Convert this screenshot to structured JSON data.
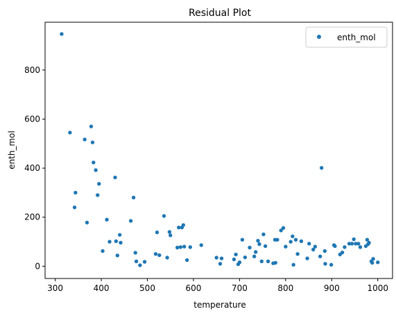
{
  "chart_data": {
    "type": "scatter",
    "title": "Residual Plot",
    "xlabel": "temperature",
    "ylabel": "enth_mol",
    "xlim": [
      278,
      1032
    ],
    "ylim": [
      -50,
      995
    ],
    "xticks": [
      300,
      400,
      500,
      600,
      700,
      800,
      900,
      1000
    ],
    "yticks": [
      0,
      200,
      400,
      600,
      800
    ],
    "grid": false,
    "legend": {
      "position": "top-right"
    },
    "color": "#1f77b4",
    "series": [
      {
        "name": "enth_mol",
        "points": [
          [
            314,
            947
          ],
          [
            332,
            545
          ],
          [
            342,
            240
          ],
          [
            344,
            300
          ],
          [
            364,
            517
          ],
          [
            369,
            178
          ],
          [
            378,
            570
          ],
          [
            381,
            505
          ],
          [
            383,
            423
          ],
          [
            388,
            392
          ],
          [
            392,
            290
          ],
          [
            395,
            336
          ],
          [
            403,
            62
          ],
          [
            412,
            190
          ],
          [
            418,
            100
          ],
          [
            430,
            362
          ],
          [
            432,
            102
          ],
          [
            435,
            44
          ],
          [
            440,
            128
          ],
          [
            442,
            96
          ],
          [
            464,
            185
          ],
          [
            470,
            280
          ],
          [
            474,
            55
          ],
          [
            476,
            20
          ],
          [
            484,
            4
          ],
          [
            494,
            18
          ],
          [
            518,
            50
          ],
          [
            521,
            138
          ],
          [
            526,
            45
          ],
          [
            536,
            205
          ],
          [
            543,
            35
          ],
          [
            548,
            140
          ],
          [
            550,
            126
          ],
          [
            565,
            76
          ],
          [
            568,
            158
          ],
          [
            572,
            78
          ],
          [
            575,
            158
          ],
          [
            578,
            168
          ],
          [
            580,
            80
          ],
          [
            586,
            25
          ],
          [
            593,
            78
          ],
          [
            617,
            86
          ],
          [
            650,
            35
          ],
          [
            658,
            10
          ],
          [
            661,
            32
          ],
          [
            688,
            28
          ],
          [
            692,
            48
          ],
          [
            697,
            8
          ],
          [
            700,
            16
          ],
          [
            706,
            108
          ],
          [
            712,
            36
          ],
          [
            722,
            76
          ],
          [
            732,
            40
          ],
          [
            735,
            58
          ],
          [
            740,
            104
          ],
          [
            743,
            90
          ],
          [
            748,
            20
          ],
          [
            752,
            130
          ],
          [
            756,
            82
          ],
          [
            762,
            20
          ],
          [
            773,
            12
          ],
          [
            777,
            108
          ],
          [
            778,
            14
          ],
          [
            782,
            108
          ],
          [
            790,
            146
          ],
          [
            795,
            156
          ],
          [
            800,
            80
          ],
          [
            811,
            100
          ],
          [
            815,
            122
          ],
          [
            817,
            6
          ],
          [
            822,
            108
          ],
          [
            826,
            50
          ],
          [
            834,
            102
          ],
          [
            847,
            32
          ],
          [
            851,
            92
          ],
          [
            860,
            68
          ],
          [
            864,
            80
          ],
          [
            875,
            40
          ],
          [
            878,
            401
          ],
          [
            885,
            62
          ],
          [
            886,
            10
          ],
          [
            899,
            6
          ],
          [
            905,
            86
          ],
          [
            907,
            82
          ],
          [
            918,
            48
          ],
          [
            923,
            56
          ],
          [
            928,
            78
          ],
          [
            938,
            92
          ],
          [
            944,
            92
          ],
          [
            948,
            110
          ],
          [
            952,
            92
          ],
          [
            958,
            92
          ],
          [
            962,
            78
          ],
          [
            974,
            82
          ],
          [
            977,
            108
          ],
          [
            979,
            90
          ],
          [
            981,
            96
          ],
          [
            986,
            20
          ],
          [
            988,
            14
          ],
          [
            990,
            30
          ],
          [
            1000,
            16
          ]
        ]
      }
    ]
  }
}
